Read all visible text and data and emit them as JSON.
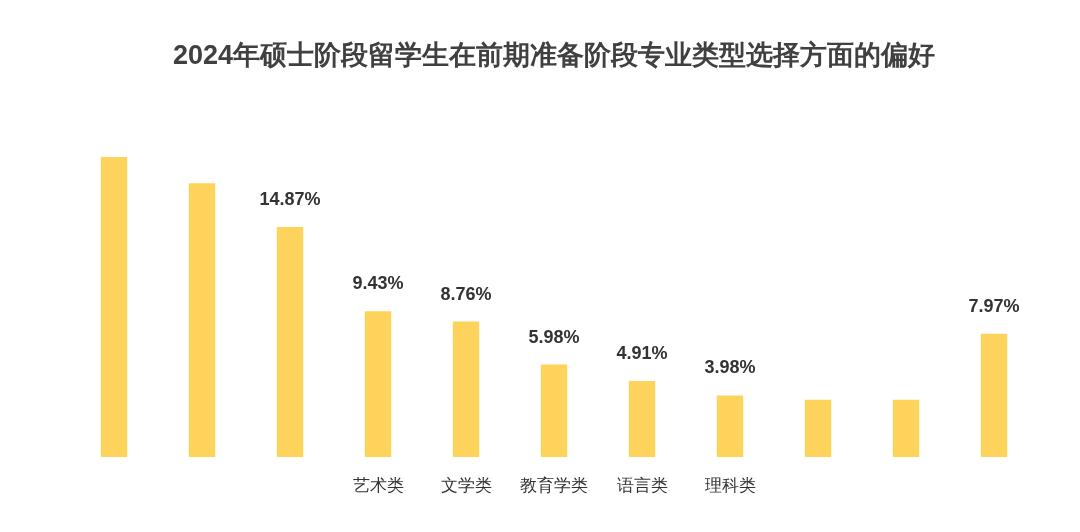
{
  "chart_data": {
    "type": "bar",
    "title": "2024年硕士阶段留学生在前期准备阶段专业类型选择方面的偏好",
    "categories": [
      null,
      null,
      null,
      "艺术类",
      "文学类",
      "教育学类",
      "语言类",
      "理科类",
      null,
      null,
      null
    ],
    "values": [
      19.4,
      17.7,
      14.87,
      9.43,
      8.76,
      5.98,
      4.91,
      3.98,
      3.7,
      3.7,
      7.97
    ],
    "color": "#fdd35c",
    "value_labels": [
      null,
      null,
      "14.87%",
      "9.43%",
      "8.76%",
      "5.98%",
      "4.91%",
      "3.98%",
      null,
      null,
      "7.97%"
    ]
  }
}
